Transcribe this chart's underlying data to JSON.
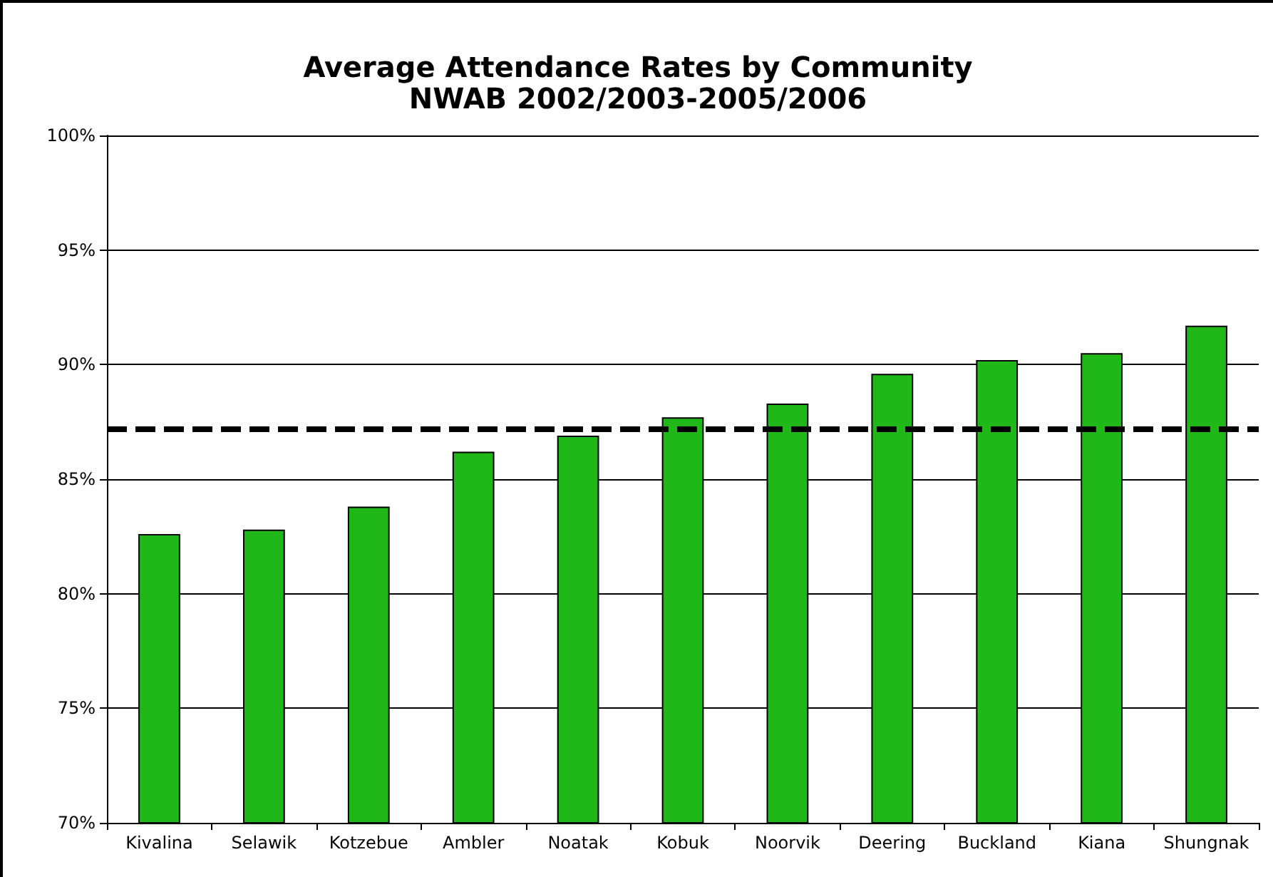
{
  "chart_data": {
    "type": "bar",
    "title": "Average Attendance Rates by Community",
    "subtitle": "NWAB 2002/2003-2005/2006",
    "categories": [
      "Kivalina",
      "Selawik",
      "Kotzebue",
      "Ambler",
      "Noatak",
      "Kobuk",
      "Noorvik",
      "Deering",
      "Buckland",
      "Kiana",
      "Shungnak"
    ],
    "values": [
      82.6,
      82.8,
      83.8,
      86.2,
      86.9,
      87.7,
      88.3,
      89.6,
      90.2,
      90.5,
      91.7
    ],
    "color": "#20b818",
    "ylim": [
      70,
      100
    ],
    "yticks": [
      {
        "value": 70,
        "label": "70%"
      },
      {
        "value": 75,
        "label": "75%"
      },
      {
        "value": 80,
        "label": "80%"
      },
      {
        "value": 85,
        "label": "85%"
      },
      {
        "value": 90,
        "label": "90%"
      },
      {
        "value": 95,
        "label": "95%"
      },
      {
        "value": 100,
        "label": "100%"
      }
    ],
    "grid": "y",
    "ref_lines": [
      {
        "axis": "y",
        "value": 87.2,
        "label": null,
        "color": "#000000",
        "line_style": "dashed"
      }
    ]
  }
}
